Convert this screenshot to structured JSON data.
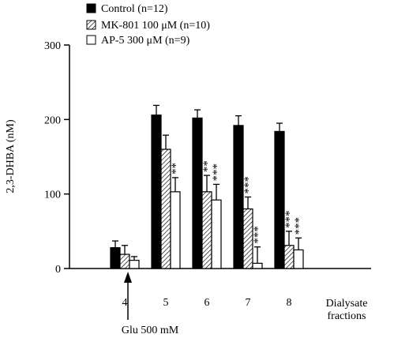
{
  "chart_data": {
    "type": "bar",
    "ylabel": "2,3-DHBA (nM)",
    "xlabel": "Dialysate fractions",
    "ylim": [
      0,
      300
    ],
    "yticks": [
      0,
      100,
      200,
      300
    ],
    "categories": [
      "4",
      "5",
      "6",
      "7",
      "8"
    ],
    "legend_position": "top-left",
    "series": [
      {
        "name": "Control (n=12)",
        "style": "solid-black",
        "values": [
          28,
          206,
          202,
          192,
          184
        ],
        "errors": [
          9,
          13,
          11,
          13,
          11
        ],
        "significance": [
          "",
          "",
          "",
          "",
          ""
        ]
      },
      {
        "name": "MK-801 100 μM (n=10)",
        "style": "hatched",
        "values": [
          19,
          160,
          103,
          80,
          31
        ],
        "errors": [
          12,
          19,
          22,
          16,
          19
        ],
        "significance": [
          "",
          "",
          "**",
          "***",
          "***"
        ]
      },
      {
        "name": "AP-5 300 μM (n=9)",
        "style": "white",
        "values": [
          11,
          103,
          92,
          7,
          25
        ],
        "errors": [
          5,
          19,
          21,
          22,
          16
        ],
        "significance": [
          "",
          "**",
          "***",
          "***",
          "***"
        ]
      }
    ],
    "annotation": {
      "text": "Glu 500 mM",
      "category": "5",
      "arrow": "up"
    },
    "colors": {
      "control": "#000000",
      "mk801": "#ffffff",
      "ap5": "#ffffff",
      "axis": "#000000"
    }
  }
}
